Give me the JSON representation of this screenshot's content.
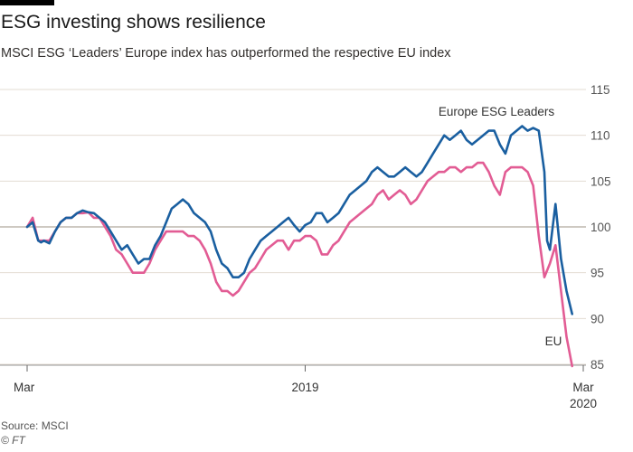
{
  "header": {
    "title": "ESG investing shows resilience",
    "subtitle": "MSCI ESG ‘Leaders’ Europe index has outperformed the respective EU index"
  },
  "footer": {
    "source": "Source: MSCI",
    "credit": "© FT"
  },
  "colors": {
    "leaders": "#1a5fa0",
    "eu": "#e25c94",
    "grid": "#e3dcd3",
    "baseline": "#bdb7ad"
  },
  "chart_data": {
    "type": "line",
    "title": "ESG investing shows resilience",
    "subtitle": "MSCI ESG ‘Leaders’ Europe index has outperformed the respective EU index",
    "xlabel": "",
    "ylabel": "",
    "ylim": [
      85,
      115
    ],
    "yticks": [
      85,
      90,
      95,
      100,
      105,
      110,
      115
    ],
    "xlim": [
      0,
      100
    ],
    "xticks": [
      {
        "x": 0,
        "label": "Mar",
        "sub": ""
      },
      {
        "x": 50,
        "label": "2019",
        "sub": ""
      },
      {
        "x": 100,
        "label": "Mar",
        "sub": "2020"
      }
    ],
    "series": [
      {
        "name": "Europe ESG Leaders",
        "label": "Europe ESG Leaders",
        "color": "#1a5fa0",
        "x": [
          0,
          1,
          2,
          2.5,
          3,
          4,
          5,
          6,
          7,
          8,
          9,
          10,
          11,
          12,
          13,
          14,
          15,
          16,
          17,
          18,
          19,
          20,
          21,
          22,
          23,
          24,
          25,
          26,
          27,
          28,
          29,
          30,
          31,
          32,
          33,
          34,
          35,
          36,
          37,
          38,
          39,
          40,
          41,
          42,
          43,
          44,
          45,
          46,
          47,
          48,
          49,
          50,
          51,
          52,
          53,
          54,
          55,
          56,
          57,
          58,
          59,
          60,
          61,
          62,
          63,
          64,
          65,
          66,
          67,
          68,
          69,
          70,
          71,
          72,
          73,
          74,
          75,
          76,
          77,
          78,
          79,
          80,
          81,
          82,
          83,
          84,
          85,
          86,
          87,
          88,
          89,
          90,
          91,
          92,
          93,
          93.5,
          94,
          95,
          96,
          97,
          98
        ],
        "values": [
          100,
          100.5,
          98.5,
          98.3,
          98.5,
          98.2,
          99.5,
          100.5,
          101,
          101,
          101.5,
          101.8,
          101.6,
          101.5,
          101,
          100.5,
          99.5,
          98.5,
          97.5,
          98,
          97,
          96,
          96.5,
          96.5,
          98,
          99,
          100.5,
          102,
          102.5,
          103,
          102.5,
          101.5,
          101,
          100.5,
          99.5,
          97.5,
          96,
          95.5,
          94.5,
          94.5,
          95,
          96.5,
          97.5,
          98.5,
          99,
          99.5,
          100,
          100.5,
          101,
          100.2,
          99.5,
          100.2,
          100.5,
          101.5,
          101.5,
          100.5,
          101,
          101.5,
          102.5,
          103.5,
          104,
          104.5,
          105,
          106,
          106.5,
          106,
          105.5,
          105.5,
          106,
          106.5,
          106,
          105.5,
          106,
          107,
          108,
          109,
          110,
          109.5,
          110,
          110.5,
          109.5,
          109,
          109.5,
          110,
          110.5,
          110.5,
          109,
          108,
          110,
          110.5,
          111,
          110.5,
          110.8,
          110.5,
          106,
          98.5,
          97.5,
          102.5,
          96.5,
          93,
          90.5
        ]
      },
      {
        "name": "EU",
        "label": "EU",
        "color": "#e25c94",
        "x": [
          0,
          1,
          2,
          3,
          4,
          5,
          6,
          7,
          8,
          9,
          10,
          11,
          12,
          13,
          14,
          15,
          16,
          17,
          18,
          19,
          20,
          21,
          22,
          23,
          24,
          25,
          26,
          27,
          28,
          29,
          30,
          31,
          32,
          33,
          34,
          35,
          36,
          37,
          38,
          39,
          40,
          41,
          42,
          43,
          44,
          45,
          46,
          47,
          48,
          49,
          50,
          51,
          52,
          53,
          54,
          55,
          56,
          57,
          58,
          59,
          60,
          61,
          62,
          63,
          64,
          65,
          66,
          67,
          68,
          69,
          70,
          71,
          72,
          73,
          74,
          75,
          76,
          77,
          78,
          79,
          80,
          81,
          82,
          83,
          84,
          85,
          86,
          87,
          88,
          89,
          90,
          91,
          92,
          93,
          94,
          95,
          96,
          97,
          98
        ],
        "values": [
          100,
          101,
          98.5,
          98.5,
          98.5,
          99.5,
          100.5,
          101,
          101,
          101.5,
          101.5,
          101.6,
          101,
          101,
          100,
          99,
          97.5,
          97,
          96,
          95,
          95,
          95,
          96,
          97.5,
          98.5,
          99.5,
          99.5,
          99.5,
          99.5,
          99,
          99,
          98.5,
          97.5,
          96,
          94,
          93,
          93,
          92.5,
          93,
          94,
          95,
          95.5,
          96.5,
          97.5,
          98,
          98.5,
          98.5,
          97.5,
          98.5,
          98.5,
          99,
          99,
          98.5,
          97,
          97,
          98,
          98.5,
          99.5,
          100.5,
          101,
          101.5,
          102,
          102.5,
          103.5,
          104,
          103,
          103.5,
          104,
          103.5,
          102.5,
          103,
          104,
          105,
          105.5,
          106,
          106,
          106.5,
          106.5,
          106,
          106.5,
          106.5,
          107,
          107,
          106,
          104.5,
          103.5,
          106,
          106.5,
          106.5,
          106.5,
          106,
          104.5,
          99,
          94.5,
          96,
          98,
          93,
          88,
          84.8
        ]
      }
    ]
  }
}
